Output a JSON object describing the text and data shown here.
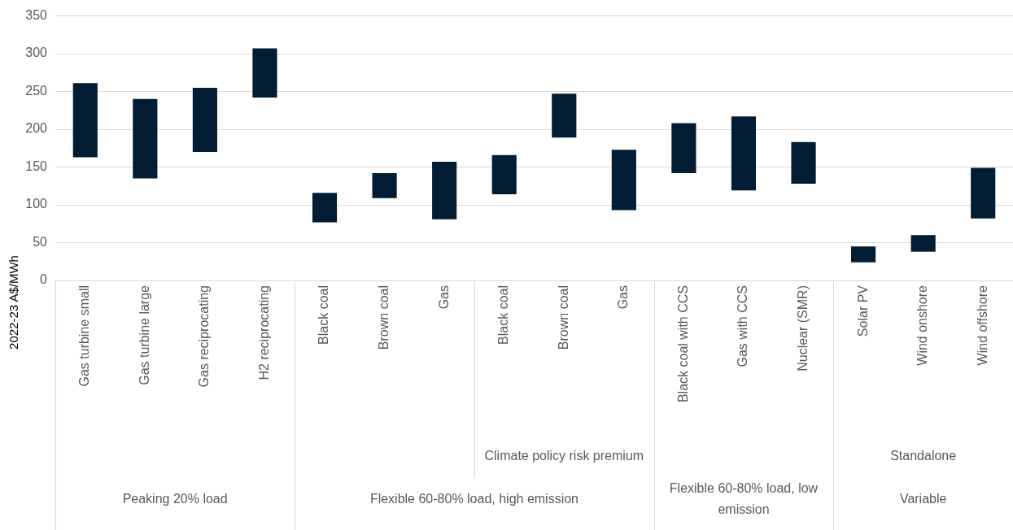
{
  "chart_data": {
    "type": "bar",
    "ylabel": "2022-23 A$/MWh",
    "categories": [
      "Gas turbine small",
      "Gas turbine large",
      "Gas reciprocating",
      "H2 reciprocating",
      "Black coal",
      "Brown coal",
      "Gas",
      "Black coal",
      "Brown coal",
      "Gas",
      "Black coal with CCS",
      "Gas with CCS",
      "Nuclear (SMR)",
      "Solar PV",
      "Wind onshore",
      "Wind offshore"
    ],
    "base": [
      163,
      135,
      170,
      242,
      77,
      109,
      81,
      114,
      189,
      93,
      142,
      119,
      128,
      24,
      38,
      82
    ],
    "values": [
      98,
      105,
      85,
      65,
      39,
      33,
      76,
      52,
      58,
      80,
      66,
      98,
      55,
      21,
      22,
      67
    ],
    "color": "#021d33",
    "ylim": [
      0,
      350
    ],
    "yticks": [
      0,
      50,
      100,
      150,
      200,
      250,
      300,
      350
    ],
    "grid": "y",
    "legend": false,
    "annotations": [
      "Climate policy risk premium",
      "Standalone",
      "Peaking 20% load",
      "Flexible 60-80% load, high emission",
      "Flexible 60-80% load, low emission",
      "Variable"
    ]
  }
}
